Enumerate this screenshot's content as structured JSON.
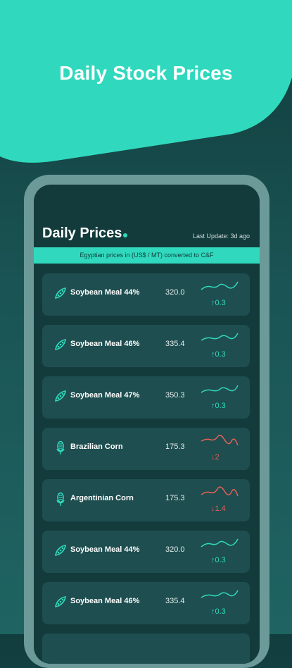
{
  "hero": {
    "title": "Daily Stock Prices"
  },
  "screen": {
    "title": "Daily Prices",
    "last_update": "Last Update: 3d ago",
    "info_bar": "Egyptian prices in (US$ / MT) converted to C&F"
  },
  "colors": {
    "accent": "#30d9bd",
    "up": "#30d9bd",
    "down": "#e85f55",
    "card_bg": "#1e4e4f"
  },
  "items": [
    {
      "name": "Soybean Meal 44%",
      "price": "320.0",
      "change": "↑0.3",
      "direction": "up",
      "icon": "soybean-pod-icon"
    },
    {
      "name": "Soybean Meal 46%",
      "price": "335.4",
      "change": "↑0.3",
      "direction": "up",
      "icon": "soybean-pod-icon"
    },
    {
      "name": "Soybean Meal 47%",
      "price": "350.3",
      "change": "↑0.3",
      "direction": "up",
      "icon": "soybean-pod-icon"
    },
    {
      "name": "Brazilian Corn",
      "price": "175.3",
      "change": "↓2",
      "direction": "down",
      "icon": "corn-icon"
    },
    {
      "name": "Argentinian Corn",
      "price": "175.3",
      "change": "↓1.4",
      "direction": "down",
      "icon": "corn-icon"
    },
    {
      "name": "Soybean Meal 44%",
      "price": "320.0",
      "change": "↑0.3",
      "direction": "up",
      "icon": "soybean-pod-icon"
    },
    {
      "name": "Soybean Meal 46%",
      "price": "335.4",
      "change": "↑0.3",
      "direction": "up",
      "icon": "soybean-pod-icon"
    }
  ]
}
